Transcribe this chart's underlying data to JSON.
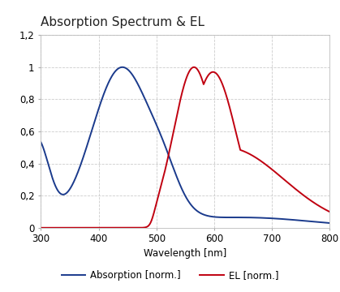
{
  "title": "Absorption Spectrum & EL",
  "xlabel": "Wavelength [nm]",
  "ylabel_absorption": "Absorption [norm.]",
  "ylabel_el": "EL [norm.]",
  "xlim": [
    300,
    800
  ],
  "ylim": [
    0,
    1.2
  ],
  "yticks": [
    0,
    0.2,
    0.4,
    0.6,
    0.8,
    1.0,
    1.2
  ],
  "xticks": [
    300,
    400,
    500,
    600,
    700,
    800
  ],
  "absorption_color": "#1a3a8c",
  "el_color": "#c00010",
  "background_color": "#FFFFFF",
  "grid_color": "#CCCCCC",
  "title_fontsize": 11,
  "axis_fontsize": 8.5,
  "legend_fontsize": 8.5
}
